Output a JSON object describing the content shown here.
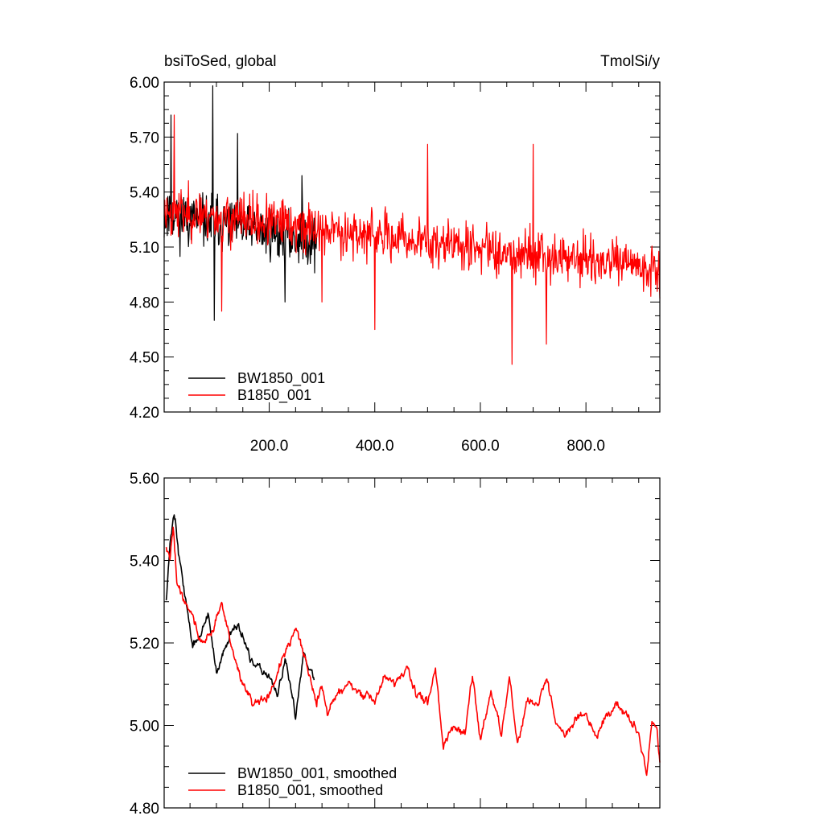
{
  "chart_data": [
    {
      "type": "line",
      "title_left": "bsiToSed, global",
      "title_right": "TmolSi/y",
      "xlabel": "",
      "ylabel": "",
      "xlim": [
        1,
        940
      ],
      "ylim": [
        4.2,
        6.0
      ],
      "yticks": [
        4.2,
        4.5,
        4.8,
        5.1,
        5.4,
        5.7,
        6.0
      ],
      "ytick_labels": [
        "4.20",
        "4.50",
        "4.80",
        "5.10",
        "5.40",
        "5.70",
        "6.00"
      ],
      "xticks": [
        200,
        400,
        600,
        800
      ],
      "xtick_labels": [
        "200.0",
        "400.0",
        "600.0",
        "800.0"
      ],
      "legend_position": "bottom-left",
      "series": [
        {
          "name": "BW1850_001",
          "color": "#000000",
          "x_start": 1,
          "x_end": 290,
          "mean_start": 5.28,
          "mean_end": 5.13,
          "noise": 0.14,
          "seed": 11,
          "spikes": [
            [
              14,
              5.82
            ],
            [
              93,
              5.98
            ],
            [
              96,
              4.7
            ],
            [
              140,
              5.72
            ],
            [
              230,
              4.8
            ],
            [
              262,
              5.49
            ]
          ]
        },
        {
          "name": "B1850_001",
          "color": "#ff0000",
          "x_start": 1,
          "x_end": 940,
          "mean_start": 5.3,
          "mean_end": 4.98,
          "noise": 0.13,
          "seed": 23,
          "spikes": [
            [
              20,
              5.82
            ],
            [
              110,
              4.75
            ],
            [
              300,
              4.8
            ],
            [
              400,
              4.65
            ],
            [
              500,
              5.66
            ],
            [
              660,
              4.46
            ],
            [
              700,
              5.66
            ],
            [
              725,
              4.57
            ],
            [
              940,
              4.82
            ]
          ]
        }
      ]
    },
    {
      "type": "line",
      "title_left": "",
      "title_right": "",
      "xlabel": "",
      "ylabel": "",
      "xlim": [
        1,
        940
      ],
      "ylim": [
        4.8,
        5.6
      ],
      "yticks": [
        4.8,
        5.0,
        5.2,
        5.4,
        5.6
      ],
      "ytick_labels": [
        "4.80",
        "5.00",
        "5.20",
        "5.40",
        "5.60"
      ],
      "xticks": [
        200,
        400,
        600,
        800
      ],
      "xtick_labels": [],
      "legend_position": "bottom-left",
      "series": [
        {
          "name": "BW1850_001, smoothed",
          "color": "#000000",
          "x_start": 5,
          "x_end": 285,
          "seed": 37,
          "path": [
            [
              5,
              5.31
            ],
            [
              12,
              5.44
            ],
            [
              20,
              5.52
            ],
            [
              30,
              5.4
            ],
            [
              45,
              5.28
            ],
            [
              55,
              5.19
            ],
            [
              70,
              5.22
            ],
            [
              85,
              5.27
            ],
            [
              100,
              5.12
            ],
            [
              120,
              5.2
            ],
            [
              135,
              5.25
            ],
            [
              150,
              5.22
            ],
            [
              165,
              5.15
            ],
            [
              180,
              5.14
            ],
            [
              200,
              5.12
            ],
            [
              215,
              5.07
            ],
            [
              230,
              5.16
            ],
            [
              250,
              5.02
            ],
            [
              265,
              5.18
            ],
            [
              285,
              5.11
            ]
          ]
        },
        {
          "name": "B1850_001, smoothed",
          "color": "#ff0000",
          "x_start": 5,
          "x_end": 940,
          "seed": 41,
          "path": [
            [
              5,
              5.43
            ],
            [
              12,
              5.4
            ],
            [
              18,
              5.48
            ],
            [
              25,
              5.35
            ],
            [
              40,
              5.3
            ],
            [
              55,
              5.27
            ],
            [
              70,
              5.2
            ],
            [
              90,
              5.22
            ],
            [
              110,
              5.3
            ],
            [
              130,
              5.18
            ],
            [
              150,
              5.1
            ],
            [
              170,
              5.05
            ],
            [
              190,
              5.06
            ],
            [
              210,
              5.1
            ],
            [
              230,
              5.18
            ],
            [
              250,
              5.24
            ],
            [
              270,
              5.15
            ],
            [
              290,
              5.05
            ],
            [
              300,
              5.1
            ],
            [
              310,
              5.03
            ],
            [
              330,
              5.08
            ],
            [
              350,
              5.1
            ],
            [
              380,
              5.07
            ],
            [
              400,
              5.06
            ],
            [
              420,
              5.12
            ],
            [
              440,
              5.1
            ],
            [
              460,
              5.14
            ],
            [
              480,
              5.07
            ],
            [
              500,
              5.06
            ],
            [
              515,
              5.14
            ],
            [
              530,
              4.95
            ],
            [
              550,
              5.0
            ],
            [
              570,
              4.98
            ],
            [
              585,
              5.12
            ],
            [
              600,
              4.96
            ],
            [
              620,
              5.08
            ],
            [
              640,
              4.98
            ],
            [
              655,
              5.12
            ],
            [
              670,
              4.95
            ],
            [
              690,
              5.06
            ],
            [
              710,
              5.05
            ],
            [
              725,
              5.12
            ],
            [
              740,
              5.02
            ],
            [
              760,
              4.97
            ],
            [
              780,
              5.02
            ],
            [
              800,
              5.03
            ],
            [
              820,
              4.97
            ],
            [
              840,
              5.03
            ],
            [
              860,
              5.05
            ],
            [
              880,
              5.02
            ],
            [
              900,
              4.98
            ],
            [
              915,
              4.88
            ],
            [
              925,
              5.01
            ],
            [
              935,
              4.98
            ],
            [
              940,
              4.91
            ]
          ]
        }
      ]
    }
  ]
}
